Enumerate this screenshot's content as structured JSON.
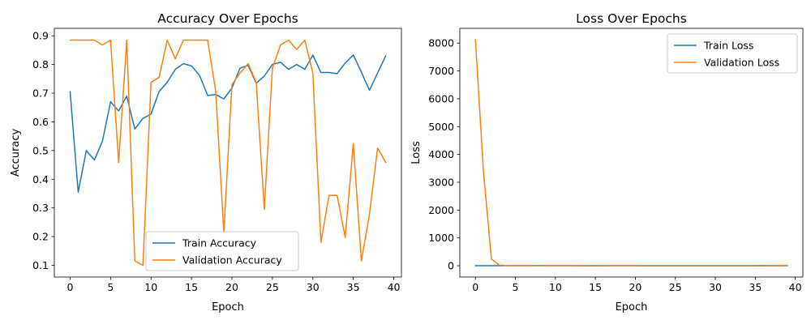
{
  "chart_data": [
    {
      "type": "line",
      "title": "Accuracy Over Epochs",
      "xlabel": "Epoch",
      "ylabel": "Accuracy",
      "xlim": [
        -1.95,
        40.95
      ],
      "ylim": [
        0.059,
        0.926
      ],
      "xticks": [
        0,
        5,
        10,
        15,
        20,
        25,
        30,
        35,
        40
      ],
      "yticks": [
        0.1,
        0.2,
        0.3,
        0.4,
        0.5,
        0.6,
        0.7,
        0.8,
        0.9
      ],
      "ytick_labels": [
        "0.1",
        "0.2",
        "0.3",
        "0.4",
        "0.5",
        "0.6",
        "0.7",
        "0.8",
        "0.9"
      ],
      "grid": false,
      "legend_position": "lower-center",
      "x": [
        0,
        1,
        2,
        3,
        4,
        5,
        6,
        7,
        8,
        9,
        10,
        11,
        12,
        13,
        14,
        15,
        16,
        17,
        18,
        19,
        20,
        21,
        22,
        23,
        24,
        25,
        26,
        27,
        28,
        29,
        30,
        31,
        32,
        33,
        34,
        35,
        36,
        37,
        38,
        39
      ],
      "series": [
        {
          "name": "Train Accuracy",
          "color": "#1f77b4",
          "values": [
            0.705,
            0.355,
            0.5,
            0.467,
            0.533,
            0.67,
            0.638,
            0.69,
            0.575,
            0.612,
            0.627,
            0.706,
            0.738,
            0.783,
            0.803,
            0.795,
            0.762,
            0.692,
            0.695,
            0.68,
            0.718,
            0.787,
            0.797,
            0.735,
            0.76,
            0.8,
            0.808,
            0.783,
            0.8,
            0.783,
            0.833,
            0.772,
            0.772,
            0.768,
            0.805,
            0.833,
            0.773,
            0.71,
            0.77,
            0.83
          ]
        },
        {
          "name": "Validation Accuracy",
          "color": "#ff7f0e",
          "values": [
            0.885,
            0.885,
            0.885,
            0.885,
            0.868,
            0.885,
            0.458,
            0.885,
            0.115,
            0.1,
            0.738,
            0.755,
            0.885,
            0.82,
            0.885,
            0.885,
            0.885,
            0.885,
            0.705,
            0.213,
            0.73,
            0.77,
            0.803,
            0.738,
            0.295,
            0.787,
            0.868,
            0.885,
            0.852,
            0.885,
            0.77,
            0.18,
            0.344,
            0.344,
            0.197,
            0.525,
            0.115,
            0.278,
            0.508,
            0.459
          ]
        }
      ]
    },
    {
      "type": "line",
      "title": "Loss Over Epochs",
      "xlabel": "Epoch",
      "ylabel": "Loss",
      "xlim": [
        -1.95,
        40.95
      ],
      "ylim": [
        -405,
        8530
      ],
      "xticks": [
        0,
        5,
        10,
        15,
        20,
        25,
        30,
        35,
        40
      ],
      "yticks": [
        0,
        1000,
        2000,
        3000,
        4000,
        5000,
        6000,
        7000,
        8000
      ],
      "ytick_labels": [
        "0",
        "1000",
        "2000",
        "3000",
        "4000",
        "5000",
        "6000",
        "7000",
        "8000"
      ],
      "grid": false,
      "legend_position": "upper-right",
      "x": [
        0,
        1,
        2,
        3,
        4,
        5,
        6,
        7,
        8,
        9,
        10,
        11,
        12,
        13,
        14,
        15,
        16,
        17,
        18,
        19,
        20,
        21,
        22,
        23,
        24,
        25,
        26,
        27,
        28,
        29,
        30,
        31,
        32,
        33,
        34,
        35,
        36,
        37,
        38,
        39
      ],
      "series": [
        {
          "name": "Train Loss",
          "color": "#1f77b4",
          "values": [
            1.2,
            0.7,
            0.7,
            0.7,
            0.7,
            0.7,
            0.7,
            0.6,
            0.7,
            0.6,
            0.6,
            0.6,
            0.6,
            0.5,
            0.5,
            0.5,
            0.5,
            0.6,
            0.6,
            0.6,
            0.6,
            0.5,
            0.5,
            0.5,
            0.5,
            0.5,
            0.5,
            0.5,
            0.5,
            0.5,
            0.5,
            0.5,
            0.5,
            0.5,
            0.5,
            0.5,
            0.5,
            0.6,
            0.5,
            0.5
          ]
        },
        {
          "name": "Validation Loss",
          "color": "#ff7f0e",
          "values": [
            8120,
            3400,
            240,
            20,
            5,
            5,
            5,
            5,
            15,
            5,
            5,
            5,
            5,
            5,
            5,
            10,
            5,
            5,
            5,
            5,
            5,
            5,
            5,
            5,
            5,
            5,
            5,
            5,
            5,
            5,
            5,
            5,
            5,
            5,
            5,
            5,
            12,
            5,
            5,
            5
          ]
        }
      ]
    }
  ]
}
